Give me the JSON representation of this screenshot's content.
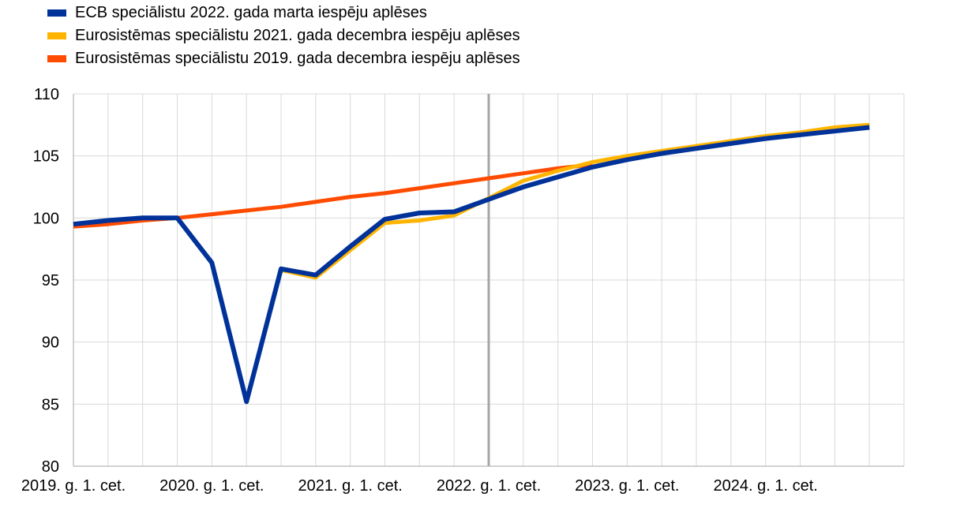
{
  "chart_data": {
    "type": "line",
    "title": "",
    "xlabel": "",
    "ylabel": "",
    "ylim": [
      80,
      110
    ],
    "y_ticks": [
      80,
      85,
      90,
      95,
      100,
      105,
      110
    ],
    "x_tick_labels": [
      "2019. g. 1. cet.",
      "2020. g. 1. cet.",
      "2021. g. 1. cet.",
      "2022. g. 1. cet.",
      "2023. g. 1. cet.",
      "2024. g. 1. cet."
    ],
    "categories": [
      "2019Q1",
      "2019Q2",
      "2019Q3",
      "2019Q4",
      "2020Q1",
      "2020Q2",
      "2020Q3",
      "2020Q4",
      "2021Q1",
      "2021Q2",
      "2021Q3",
      "2021Q4",
      "2022Q1",
      "2022Q2",
      "2022Q3",
      "2022Q4",
      "2023Q1",
      "2023Q2",
      "2023Q3",
      "2023Q4",
      "2024Q1",
      "2024Q2",
      "2024Q3",
      "2024Q4"
    ],
    "vertical_marker": "2022Q1",
    "grid": true,
    "legend_position": "top-left",
    "series": [
      {
        "name": "Eurosistēmas speciālistu 2019. gada decembra iespēju aplēses",
        "color": "#ff4b00",
        "values": [
          99.3,
          99.5,
          99.8,
          100.0,
          100.3,
          100.6,
          100.9,
          101.3,
          101.7,
          102.0,
          102.4,
          102.8,
          103.2,
          103.6,
          104.0,
          104.3,
          null,
          null,
          null,
          null,
          null,
          null,
          null,
          null
        ]
      },
      {
        "name": "Eurosistēmas speciālistu 2021. gada decembra iespēju aplēses",
        "color": "#ffb400",
        "values": [
          99.5,
          99.8,
          100.0,
          100.0,
          96.4,
          85.2,
          95.8,
          95.2,
          97.4,
          99.6,
          99.8,
          100.2,
          101.6,
          103.0,
          103.8,
          104.5,
          105.0,
          105.4,
          105.8,
          106.2,
          106.6,
          106.9,
          107.3,
          107.5
        ]
      },
      {
        "name": "ECB speciālistu 2022. gada marta iespēju aplēses",
        "color": "#003299",
        "values": [
          99.5,
          99.8,
          100.0,
          100.0,
          96.4,
          85.2,
          95.9,
          95.4,
          97.7,
          99.9,
          100.4,
          100.5,
          101.5,
          102.5,
          103.3,
          104.1,
          104.7,
          105.2,
          105.6,
          106.0,
          106.4,
          106.7,
          107.0,
          107.3
        ]
      }
    ]
  },
  "legend": [
    {
      "label": "ECB speciālistu 2022. gada marta iespēju aplēses",
      "color": "#003299"
    },
    {
      "label": "Eurosistēmas speciālistu 2021. gada decembra iespēju aplēses",
      "color": "#ffb400"
    },
    {
      "label": "Eurosistēmas speciālistu 2019. gada decembra iespēju aplēses",
      "color": "#ff4b00"
    }
  ]
}
